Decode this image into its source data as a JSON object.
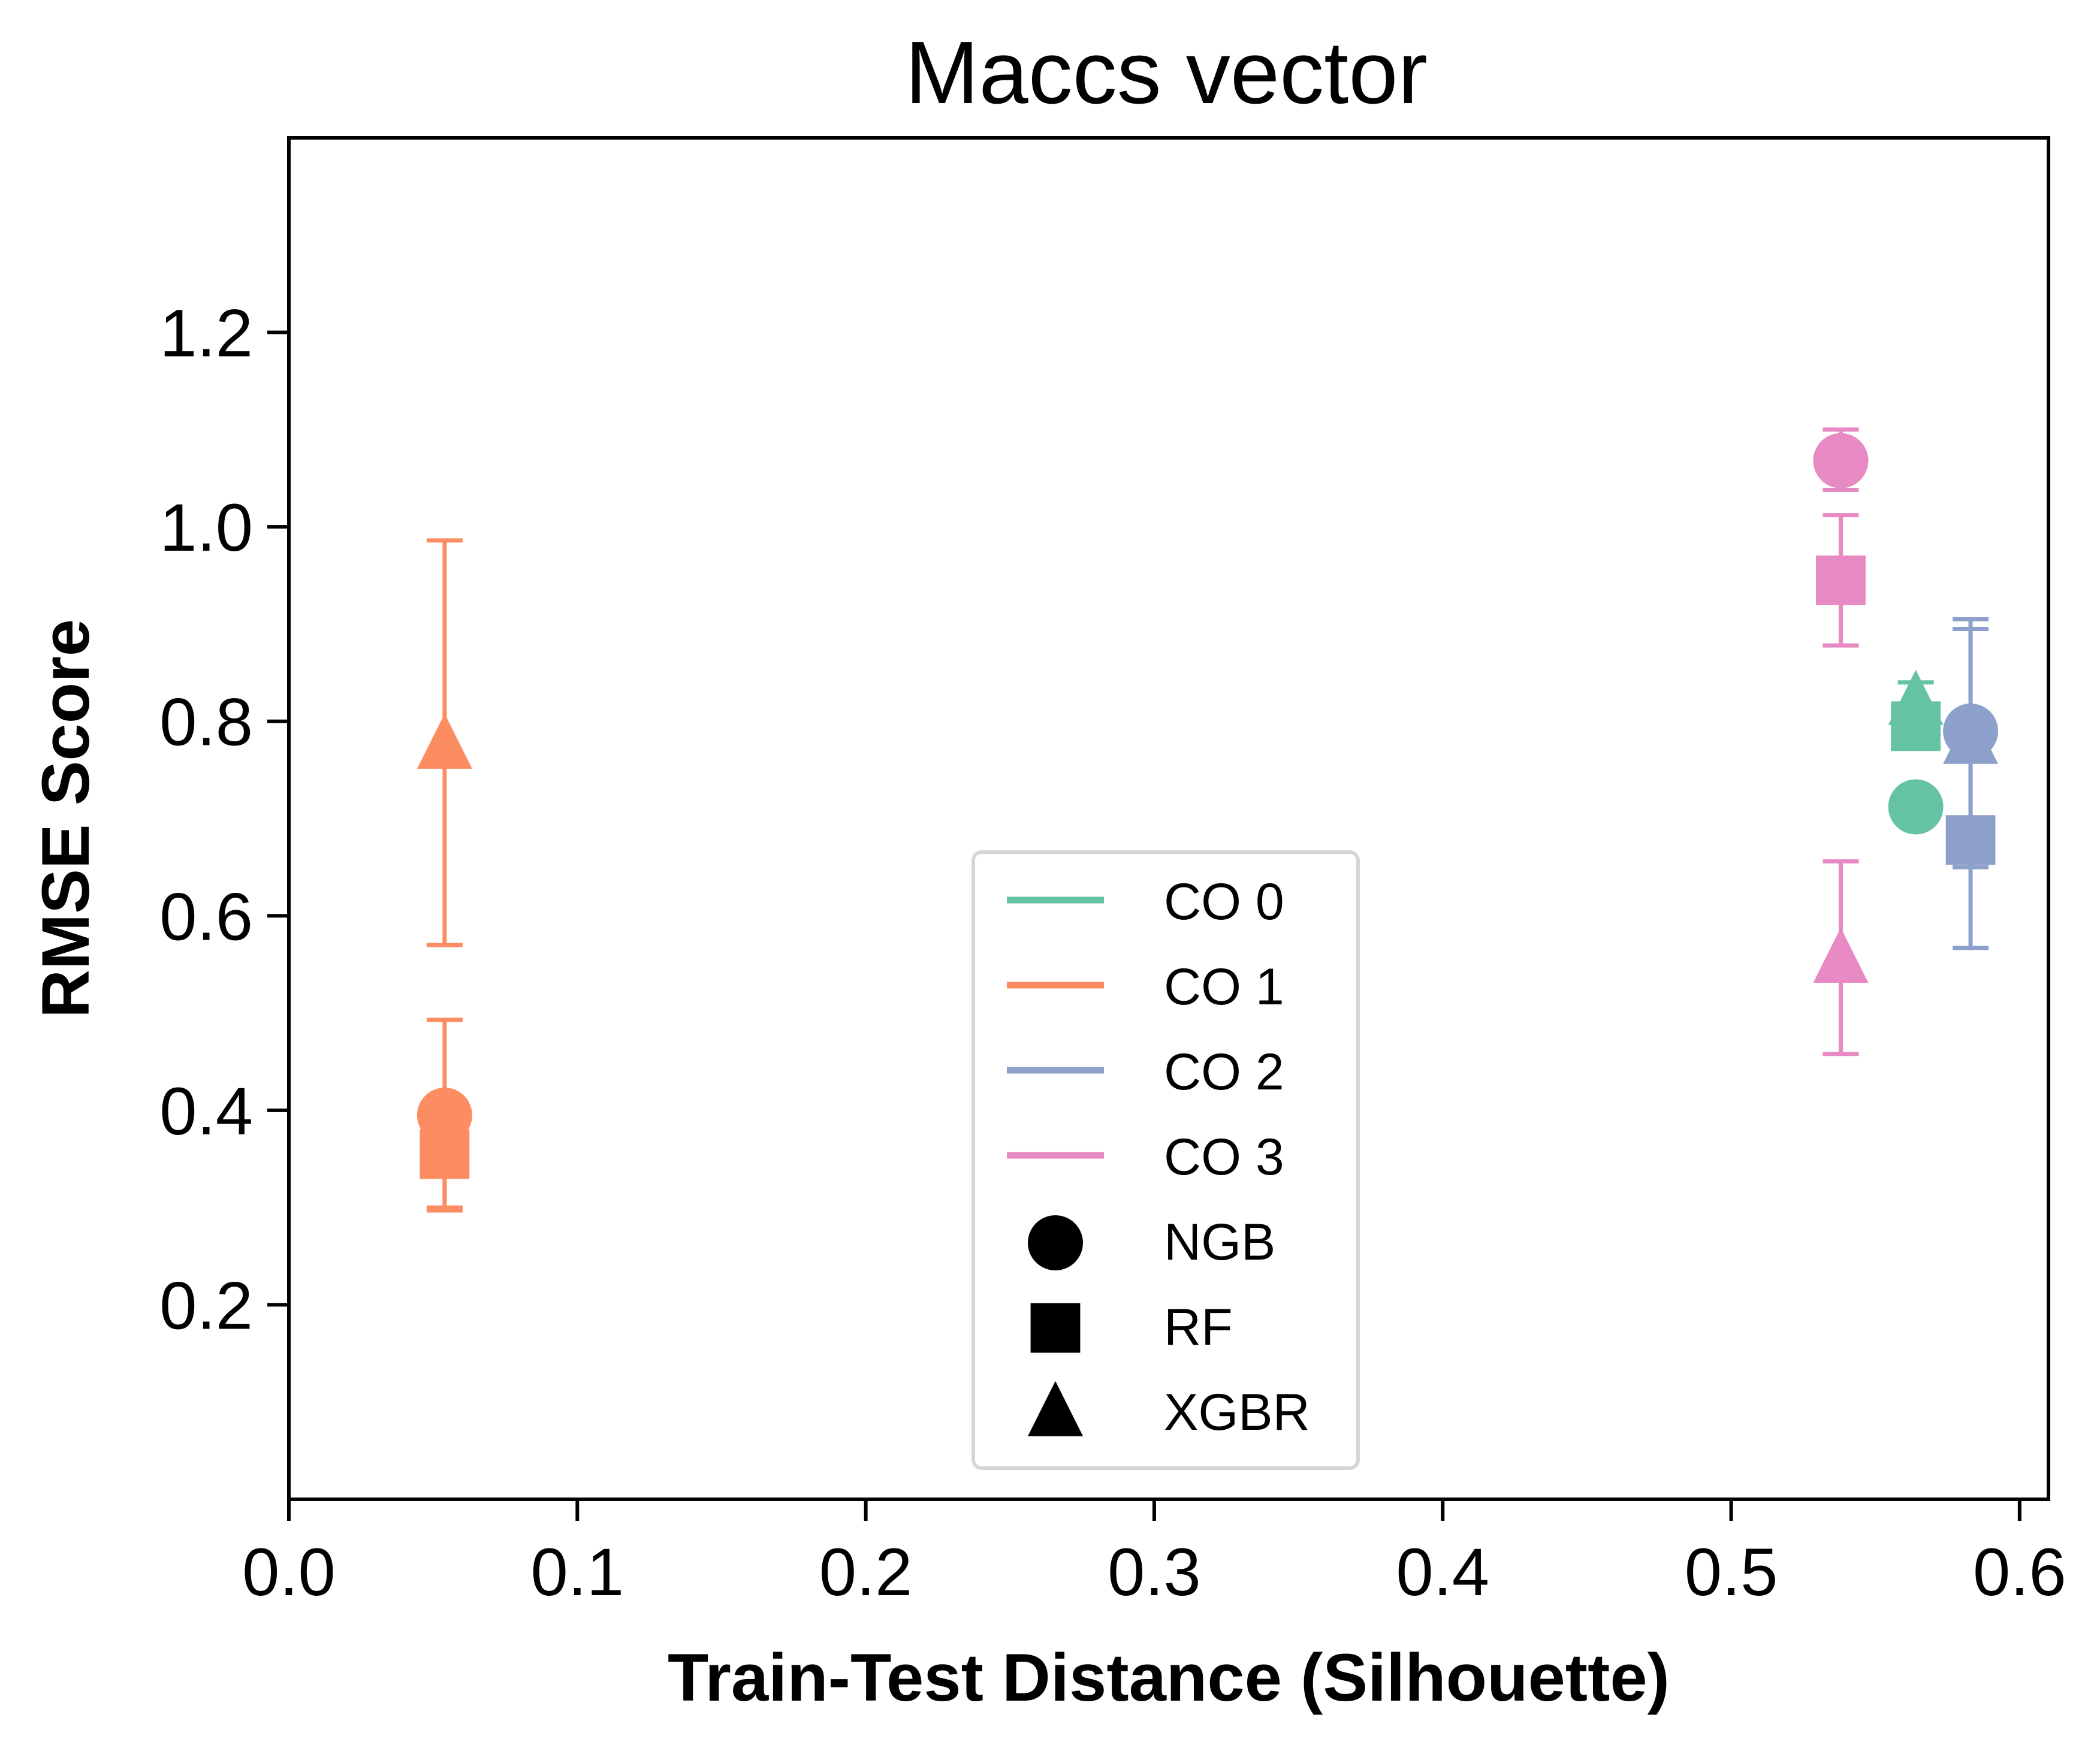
{
  "chart_data": {
    "type": "scatter",
    "title": "Maccs vector",
    "xlabel": "Train-Test Distance (Silhouette)",
    "ylabel": "RMSE Score",
    "xlim": [
      0.0,
      0.61
    ],
    "ylim": [
      0.0,
      1.4
    ],
    "xticks": [
      0.0,
      0.1,
      0.2,
      0.3,
      0.4,
      0.5,
      0.6
    ],
    "xtick_labels": [
      "0.0",
      "0.1",
      "0.2",
      "0.3",
      "0.4",
      "0.5",
      "0.6"
    ],
    "yticks": [
      0.2,
      0.4,
      0.6,
      0.8,
      1.0,
      1.2
    ],
    "ytick_labels": [
      "0.2",
      "0.4",
      "0.6",
      "0.8",
      "1.0",
      "1.2"
    ],
    "grid": false,
    "legend_position": "lower-center",
    "series": [
      {
        "name": "CO 0",
        "color": "#66c2a5",
        "points": [
          {
            "model": "NGB",
            "marker": "circle",
            "x": 0.564,
            "y": 0.712,
            "err_low": null,
            "err_high": null
          },
          {
            "model": "RF",
            "marker": "square",
            "x": 0.564,
            "y": 0.795,
            "err_low": 0.78,
            "err_high": 0.815
          },
          {
            "model": "XGBR",
            "marker": "triangle",
            "x": 0.564,
            "y": 0.82,
            "err_low": 0.8,
            "err_high": 0.84
          }
        ]
      },
      {
        "name": "CO 1",
        "color": "#fc8d62",
        "points": [
          {
            "model": "NGB",
            "marker": "circle",
            "x": 0.054,
            "y": 0.395,
            "err_low": 0.3,
            "err_high": 0.493
          },
          {
            "model": "RF",
            "marker": "square",
            "x": 0.054,
            "y": 0.355,
            "err_low": 0.297,
            "err_high": 0.413
          },
          {
            "model": "XGBR",
            "marker": "triangle",
            "x": 0.054,
            "y": 0.775,
            "err_low": 0.57,
            "err_high": 0.986
          }
        ]
      },
      {
        "name": "CO 2",
        "color": "#8da0cb",
        "points": [
          {
            "model": "NGB",
            "marker": "circle",
            "x": 0.583,
            "y": 0.79,
            "err_low": 0.68,
            "err_high": 0.895
          },
          {
            "model": "RF",
            "marker": "square",
            "x": 0.583,
            "y": 0.678,
            "err_low": 0.567,
            "err_high": 0.788
          },
          {
            "model": "XGBR",
            "marker": "triangle",
            "x": 0.583,
            "y": 0.78,
            "err_low": 0.65,
            "err_high": 0.905
          }
        ]
      },
      {
        "name": "CO 3",
        "color": "#e78ac3",
        "points": [
          {
            "model": "NGB",
            "marker": "circle",
            "x": 0.538,
            "y": 1.068,
            "err_low": 1.038,
            "err_high": 1.1
          },
          {
            "model": "RF",
            "marker": "square",
            "x": 0.538,
            "y": 0.945,
            "err_low": 0.878,
            "err_high": 1.012
          },
          {
            "model": "XGBR",
            "marker": "triangle",
            "x": 0.538,
            "y": 0.555,
            "err_low": 0.458,
            "err_high": 0.656
          }
        ]
      }
    ],
    "legend": {
      "entries": [
        {
          "label": "CO 0",
          "kind": "line",
          "color": "#66c2a5"
        },
        {
          "label": "CO 1",
          "kind": "line",
          "color": "#fc8d62"
        },
        {
          "label": "CO 2",
          "kind": "line",
          "color": "#8da0cb"
        },
        {
          "label": "CO 3",
          "kind": "line",
          "color": "#e78ac3"
        },
        {
          "label": "NGB",
          "kind": "circle",
          "color": "#000000"
        },
        {
          "label": "RF",
          "kind": "square",
          "color": "#000000"
        },
        {
          "label": "XGBR",
          "kind": "triangle",
          "color": "#000000"
        }
      ]
    }
  }
}
